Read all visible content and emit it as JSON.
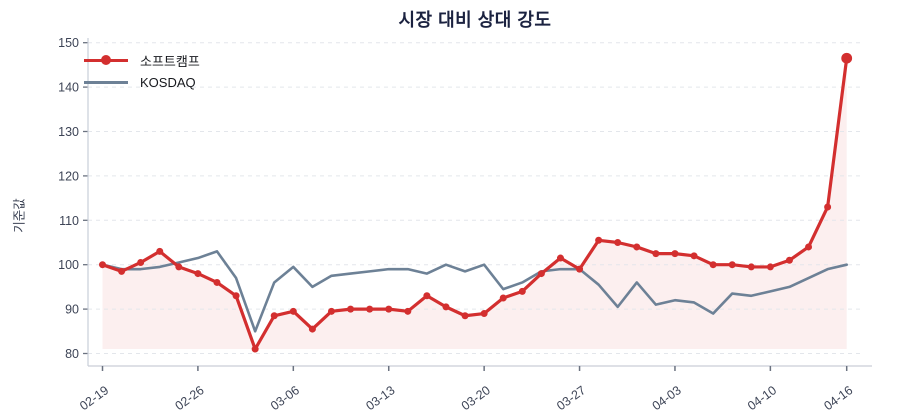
{
  "title": "시장 대비 상대 강도",
  "y_axis_label": "기준값",
  "legend_items": [
    {
      "label": "소프트캠프",
      "color": "#d32f2f",
      "marker": "line-with-dot"
    },
    {
      "label": "KOSDAQ",
      "color": "#6d8196",
      "marker": "line"
    }
  ],
  "colors": {
    "softcamp_red": "#d32f2f",
    "kosdaq_gray": "#6d8196",
    "area_fill": "rgba(211,47,47,0.08)",
    "gridline": "#e3e6eb",
    "axis_line": "#c9ced8",
    "tick_mark": "#6b7280",
    "tick_text": "#3d4456",
    "title_text": "#1b2240",
    "background": "#ffffff"
  },
  "chart_data": {
    "type": "line",
    "title": "시장 대비 상대 강도",
    "xlabel": "",
    "ylabel": "기준값",
    "ylim": [
      80,
      150
    ],
    "y_ticks": [
      80,
      90,
      100,
      110,
      120,
      130,
      140,
      150
    ],
    "x_tick_labels": [
      "02-19",
      "02-26",
      "03-06",
      "03-13",
      "03-20",
      "03-27",
      "04-03",
      "04-10",
      "04-16"
    ],
    "x_tick_indices": [
      0,
      5,
      10,
      15,
      20,
      25,
      30,
      35,
      39
    ],
    "grid": "horizontal-dashed",
    "legend_position": "top-left",
    "x_tick_label_rotation_deg": -36,
    "series": [
      {
        "name": "소프트캠프",
        "color": "#d32f2f",
        "style": "line+markers",
        "fill_to": 81,
        "last_point_emphasized": true,
        "values": [
          100,
          98.5,
          100.5,
          103,
          99.5,
          98,
          96,
          93,
          81,
          88.5,
          89.5,
          85.5,
          89.5,
          90,
          90,
          90,
          89.5,
          93,
          90.5,
          88.5,
          89,
          92.5,
          94,
          98,
          101.5,
          99,
          105.5,
          105,
          104,
          102.5,
          102.5,
          102,
          100,
          100,
          99.5,
          99.5,
          101,
          104,
          113,
          146.5
        ]
      },
      {
        "name": "KOSDAQ",
        "color": "#6d8196",
        "style": "line",
        "values": [
          100,
          99,
          99,
          99.5,
          100.5,
          101.5,
          103,
          97,
          85,
          96,
          99.5,
          95,
          97.5,
          98,
          98.5,
          99,
          99,
          98,
          100,
          98.5,
          100,
          94.5,
          96,
          98.5,
          99,
          99,
          95.5,
          90.5,
          96,
          91,
          92,
          91.5,
          89,
          93.5,
          93,
          94,
          95,
          97,
          99,
          100
        ]
      }
    ]
  }
}
